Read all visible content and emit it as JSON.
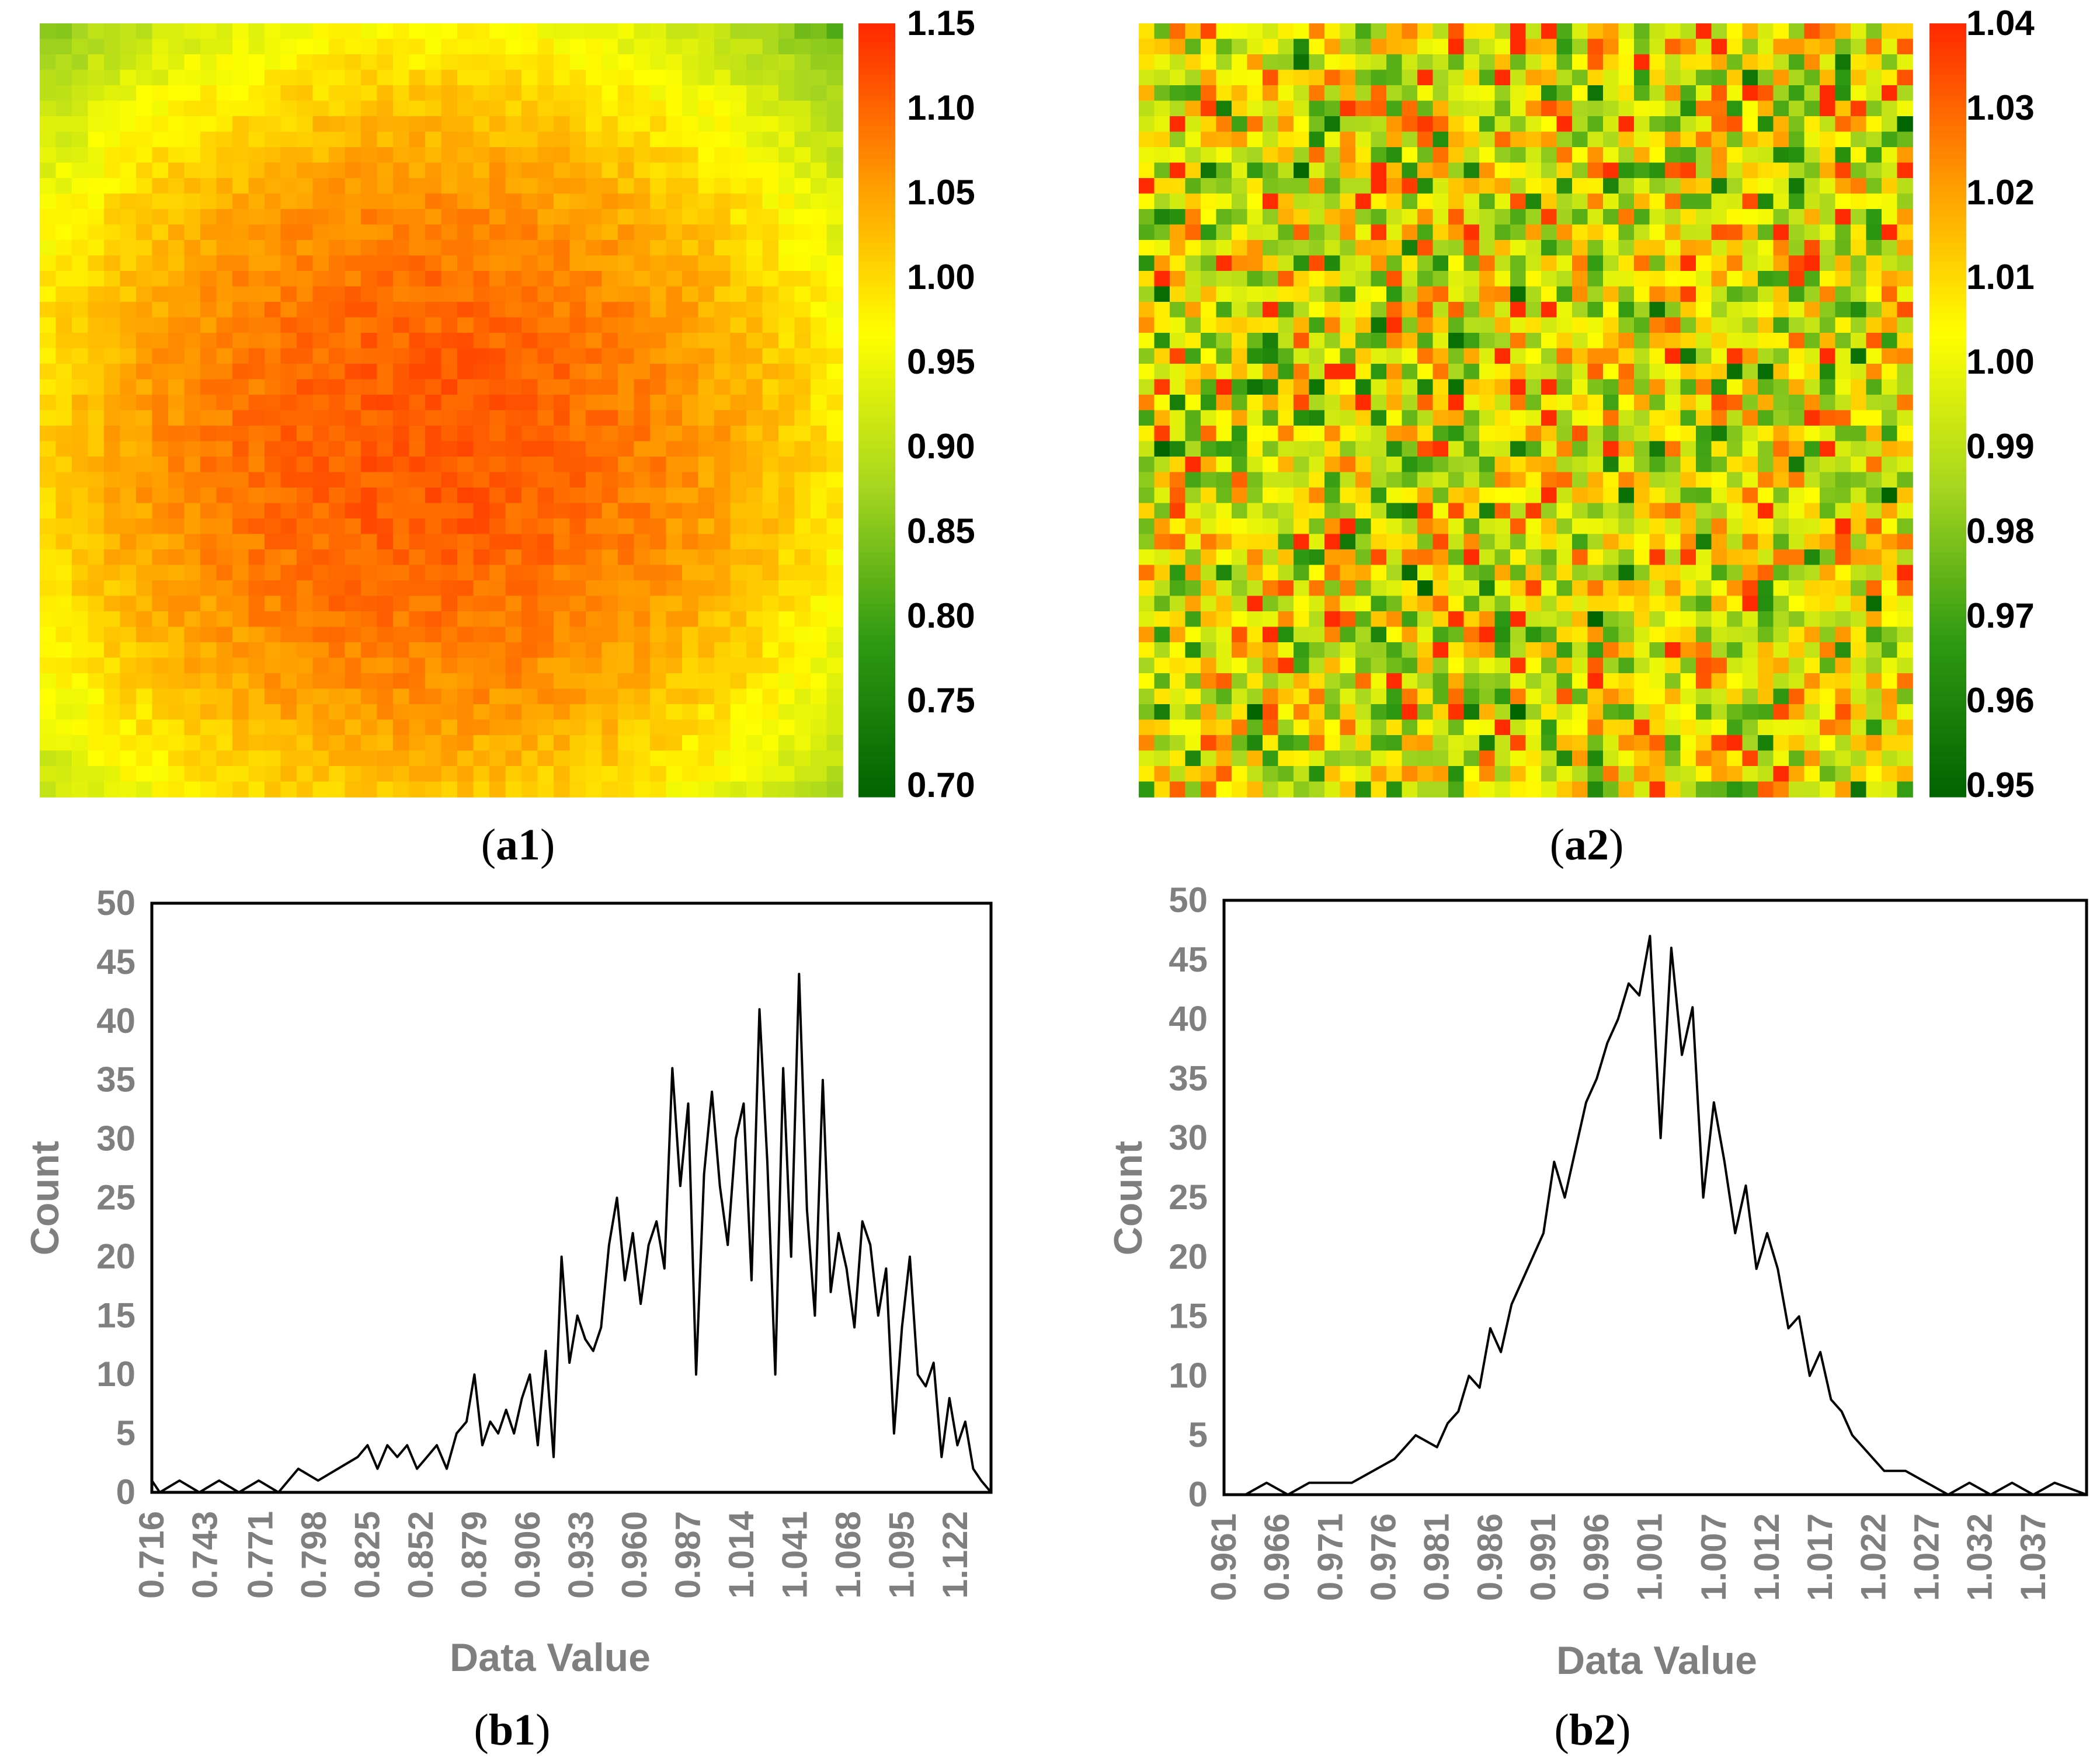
{
  "colors": {
    "ramp": [
      "#006400",
      "#2f9a12",
      "#a6d61f",
      "#ffff00",
      "#ff9900",
      "#ff2a00"
    ],
    "axis_text": "#7f7f7f",
    "line": "#000000"
  },
  "chart_data": [
    {
      "id": "a1",
      "type": "heatmap",
      "label_prefix": "(",
      "label": "a1",
      "label_suffix": ")",
      "grid": [
        50,
        50
      ],
      "pattern": "radial peak near center, low corners",
      "colorbar": {
        "min": 0.7,
        "max": 1.15,
        "ticks": [
          "1.15",
          "1.10",
          "1.05",
          "1.00",
          "0.95",
          "0.90",
          "0.85",
          "0.80",
          "0.75",
          "0.70"
        ]
      }
    },
    {
      "id": "a2",
      "type": "heatmap",
      "label_prefix": "(",
      "label": "a2",
      "label_suffix": ")",
      "grid": [
        50,
        50
      ],
      "pattern": "uncorrelated random noise around 1.00",
      "colorbar": {
        "min": 0.95,
        "max": 1.04,
        "ticks": [
          "1.04",
          "1.03",
          "1.02",
          "1.01",
          "1.00",
          "0.99",
          "0.98",
          "0.97",
          "0.96",
          "0.95"
        ]
      }
    },
    {
      "id": "b1",
      "type": "line",
      "label_prefix": "(",
      "label": "b1",
      "label_suffix": ")",
      "xlabel": "Data Value",
      "ylabel": "Count",
      "ylim": [
        0,
        50
      ],
      "yticks": [
        "0",
        "5",
        "10",
        "15",
        "20",
        "25",
        "30",
        "35",
        "40",
        "45",
        "50"
      ],
      "xlim": [
        0.716,
        1.14
      ],
      "xticks": [
        "0.716",
        "0.743",
        "0.771",
        "0.798",
        "0.825",
        "0.852",
        "0.879",
        "0.906",
        "0.933",
        "0.960",
        "0.987",
        "1.014",
        "1.041",
        "1.068",
        "1.095",
        "1.122"
      ],
      "series": [
        {
          "name": "Count",
          "x": [
            0.716,
            0.72,
            0.73,
            0.74,
            0.75,
            0.76,
            0.77,
            0.78,
            0.79,
            0.8,
            0.81,
            0.82,
            0.825,
            0.83,
            0.835,
            0.84,
            0.845,
            0.85,
            0.855,
            0.86,
            0.865,
            0.87,
            0.875,
            0.879,
            0.883,
            0.887,
            0.891,
            0.895,
            0.899,
            0.903,
            0.907,
            0.911,
            0.915,
            0.919,
            0.923,
            0.927,
            0.931,
            0.935,
            0.939,
            0.943,
            0.947,
            0.951,
            0.955,
            0.959,
            0.963,
            0.967,
            0.971,
            0.975,
            0.979,
            0.983,
            0.987,
            0.991,
            0.995,
            0.999,
            1.003,
            1.007,
            1.011,
            1.015,
            1.019,
            1.023,
            1.027,
            1.031,
            1.035,
            1.039,
            1.043,
            1.047,
            1.051,
            1.055,
            1.059,
            1.063,
            1.067,
            1.071,
            1.075,
            1.079,
            1.083,
            1.087,
            1.091,
            1.095,
            1.099,
            1.103,
            1.107,
            1.111,
            1.115,
            1.119,
            1.123,
            1.127,
            1.131,
            1.135,
            1.14
          ],
          "values": [
            1,
            0,
            1,
            0,
            1,
            0,
            1,
            0,
            2,
            1,
            2,
            3,
            4,
            2,
            4,
            3,
            4,
            2,
            3,
            4,
            2,
            5,
            6,
            10,
            4,
            6,
            5,
            7,
            5,
            8,
            10,
            4,
            12,
            3,
            20,
            11,
            15,
            13,
            12,
            14,
            21,
            25,
            18,
            22,
            16,
            21,
            23,
            19,
            36,
            26,
            33,
            10,
            27,
            34,
            26,
            21,
            30,
            33,
            18,
            41,
            28,
            10,
            36,
            20,
            44,
            24,
            15,
            35,
            17,
            22,
            19,
            14,
            23,
            21,
            15,
            19,
            5,
            14,
            20,
            10,
            9,
            11,
            3,
            8,
            4,
            6,
            2,
            1,
            0
          ]
        }
      ]
    },
    {
      "id": "b2",
      "type": "line",
      "label_prefix": "(",
      "label": "b2",
      "label_suffix": ")",
      "xlabel": "Data Value",
      "ylabel": "Count",
      "ylim": [
        0,
        50
      ],
      "yticks": [
        "0",
        "5",
        "10",
        "15",
        "20",
        "25",
        "30",
        "35",
        "40",
        "45",
        "50"
      ],
      "xlim": [
        0.961,
        1.042
      ],
      "xticks": [
        "0.961",
        "0.966",
        "0.971",
        "0.976",
        "0.981",
        "0.986",
        "0.991",
        "0.996",
        "1.001",
        "1.007",
        "1.012",
        "1.017",
        "1.022",
        "1.027",
        "1.032",
        "1.037"
      ],
      "series": [
        {
          "name": "Count",
          "x": [
            0.961,
            0.963,
            0.965,
            0.967,
            0.969,
            0.971,
            0.973,
            0.975,
            0.977,
            0.979,
            0.981,
            0.982,
            0.983,
            0.984,
            0.985,
            0.986,
            0.987,
            0.988,
            0.989,
            0.99,
            0.991,
            0.992,
            0.993,
            0.994,
            0.995,
            0.996,
            0.997,
            0.998,
            0.999,
            1.0,
            1.001,
            1.002,
            1.003,
            1.004,
            1.005,
            1.006,
            1.007,
            1.008,
            1.009,
            1.01,
            1.011,
            1.012,
            1.013,
            1.014,
            1.015,
            1.016,
            1.017,
            1.018,
            1.019,
            1.02,
            1.021,
            1.022,
            1.023,
            1.025,
            1.027,
            1.029,
            1.031,
            1.033,
            1.035,
            1.037,
            1.039,
            1.042
          ],
          "values": [
            0,
            0,
            1,
            0,
            1,
            1,
            1,
            2,
            3,
            5,
            4,
            6,
            7,
            10,
            9,
            14,
            12,
            16,
            18,
            20,
            22,
            28,
            25,
            29,
            33,
            35,
            38,
            40,
            43,
            42,
            47,
            30,
            46,
            37,
            41,
            25,
            33,
            28,
            22,
            26,
            19,
            22,
            19,
            14,
            15,
            10,
            12,
            8,
            7,
            5,
            4,
            3,
            2,
            2,
            1,
            0,
            1,
            0,
            1,
            0,
            1,
            0
          ]
        }
      ]
    }
  ]
}
